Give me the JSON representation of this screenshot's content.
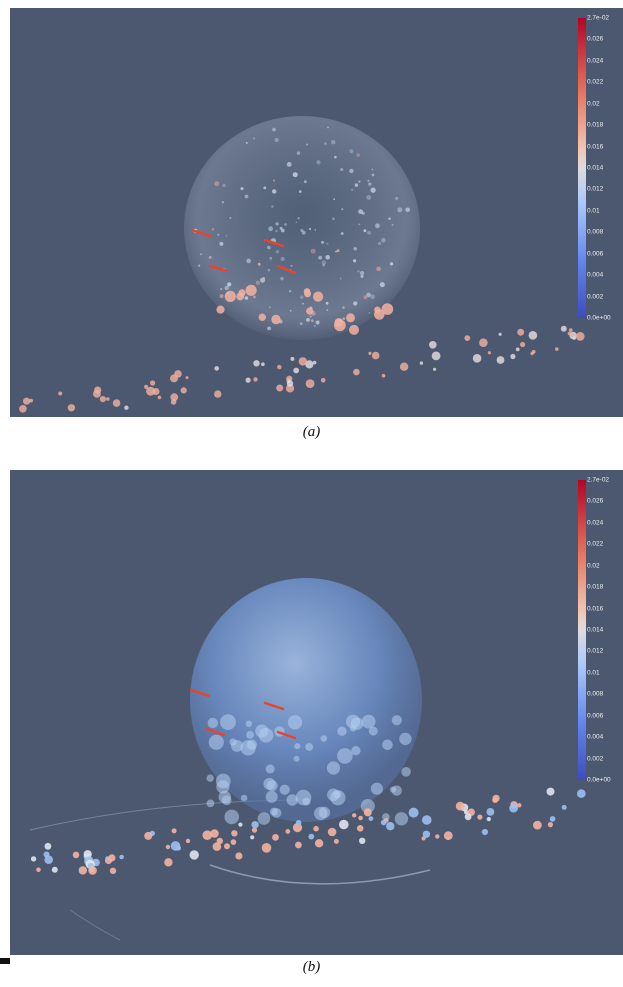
{
  "panels": [
    {
      "id": "a",
      "caption": "(a)",
      "colorbar_labels": [
        "2.7e-02",
        "0.026",
        "0.024",
        "0.022",
        "0.02",
        "0.018",
        "0.016",
        "0.014",
        "0.012",
        "0.01",
        "0.008",
        "0.006",
        "0.004",
        "0.002",
        "0.0e+00"
      ]
    },
    {
      "id": "b",
      "caption": "(b)",
      "colorbar_labels": [
        "2.7e-02",
        "0.026",
        "0.024",
        "0.022",
        "0.02",
        "0.018",
        "0.016",
        "0.014",
        "0.012",
        "0.01",
        "0.008",
        "0.006",
        "0.004",
        "0.002",
        "0.0e+00"
      ]
    }
  ],
  "colors": {
    "background": "#4b5870",
    "arrow": "#e8442c",
    "bubble_warm": "#f4b2a0",
    "bubble_cool": "#9cc0f0",
    "colormap_high": "#b40426",
    "colormap_mid": "#dddcdc",
    "colormap_low": "#3b4cc0"
  }
}
